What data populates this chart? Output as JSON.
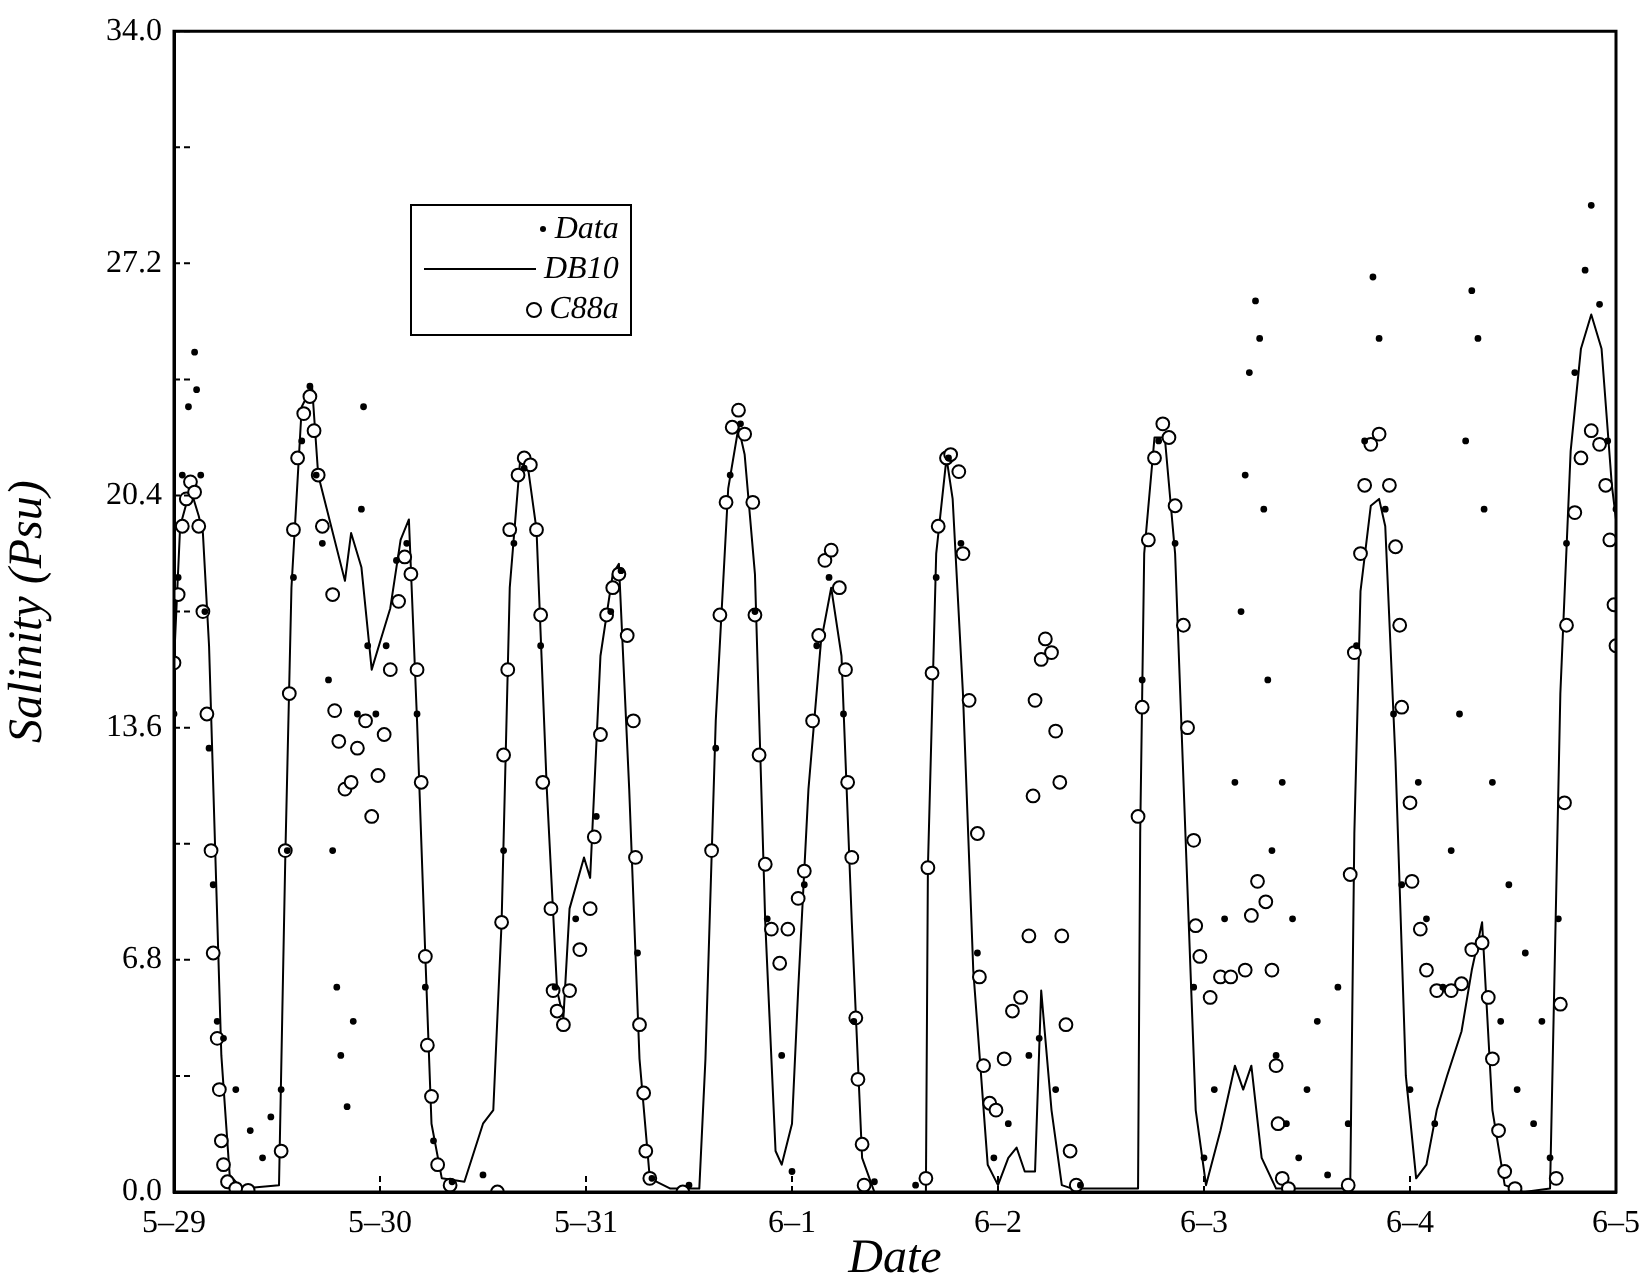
{
  "chart_data": {
    "type": "scatter",
    "xlabel": "Date",
    "ylabel": "Salinity (Psu)",
    "xlim": [
      "--05-29",
      "--06-05"
    ],
    "xticks": [
      {
        "value": "--05-29",
        "label": "5–29"
      },
      {
        "value": "--05-30",
        "label": "5–30"
      },
      {
        "value": "--05-31",
        "label": "5–31"
      },
      {
        "value": "--06-01",
        "label": "6–1"
      },
      {
        "value": "--06-02",
        "label": "6–2"
      },
      {
        "value": "--06-03",
        "label": "6–3"
      },
      {
        "value": "--06-04",
        "label": "6–4"
      },
      {
        "value": "--06-05",
        "label": "6–5"
      }
    ],
    "ylim": [
      0,
      34
    ],
    "yticks": [
      {
        "value": 0,
        "label": "0.0"
      },
      {
        "value": 3.4,
        "label": null
      },
      6.8,
      {
        "value": 10.2,
        "label": null
      },
      13.6,
      {
        "value": 17,
        "label": null
      },
      20.4,
      {
        "value": 23.8,
        "label": null
      },
      27.2,
      {
        "value": 30.6,
        "label": null
      },
      {
        "value": 34,
        "label": "34.0"
      }
    ],
    "grid": false,
    "legend": "top left",
    "series": [
      {
        "name": "Data",
        "type": "scatter",
        "marker": "circle",
        "color": "#000000",
        "x": [
          "--05-29T00:00",
          "--05-29T00:29",
          "--05-29T00:58",
          "--05-29T01:41",
          "--05-29T02:24",
          "--05-29T02:38",
          "--05-29T03:07",
          "--05-29T03:36",
          "--05-29T04:05",
          "--05-29T04:34",
          "--05-29T05:02",
          "--05-29T05:46",
          "--05-29T07:12",
          "--05-29T08:53",
          "--05-29T10:19",
          "--05-29T11:17",
          "--05-29T12:29",
          "--05-29T13:12",
          "--05-29T13:55",
          "--05-29T14:53",
          "--05-29T15:50",
          "--05-29T16:34",
          "--05-29T17:17",
          "--05-29T18:00",
          "--05-29T18:29",
          "--05-29T18:58",
          "--05-29T19:26",
          "--05-29T20:10",
          "--05-29T20:53",
          "--05-29T21:22",
          "--05-29T21:50",
          "--05-29T22:05",
          "--05-29T22:34",
          "--05-29T23:31",
          "--05-30T00:43",
          "--05-30T01:55",
          "--05-30T03:07",
          "--05-30T04:19",
          "--05-30T05:17",
          "--05-30T06:14",
          "--05-30T08:24",
          "--05-30T12:00",
          "--05-30T14:24",
          "--05-30T15:36",
          "--05-30T16:48",
          "--05-30T18:43",
          "--05-30T20:24",
          "--05-30T22:48",
          "--05-31T01:12",
          "--05-31T02:53",
          "--05-31T04:05",
          "--05-31T06:00",
          "--05-31T07:41",
          "--05-31T12:00",
          "--05-31T15:07",
          "--05-31T16:48",
          "--05-31T18:00",
          "--05-31T19:41",
          "--05-31T21:07",
          "--05-31T22:48",
          "--06-01T00:00",
          "--06-01T01:26",
          "--06-01T02:53",
          "--06-01T04:19",
          "--06-01T06:00",
          "--06-01T07:12",
          "--06-01T09:36",
          "--06-01T14:24",
          "--06-01T16:48",
          "--06-01T18:14",
          "--06-01T19:41",
          "--06-01T21:36",
          "--06-01T23:31",
          "--06-02T01:12",
          "--06-02T03:36",
          "--06-02T04:48",
          "--06-02T06:43",
          "--06-02T09:36",
          "--06-02T16:48",
          "--06-02T18:43",
          "--06-02T20:38",
          "--06-02T22:48",
          "--06-03T00:00",
          "--06-03T01:12",
          "--06-03T02:24",
          "--06-03T03:36",
          "--06-03T04:19",
          "--06-03T04:48",
          "--06-03T05:17",
          "--06-03T06:00",
          "--06-03T06:29",
          "--06-03T06:58",
          "--06-03T07:26",
          "--06-03T07:55",
          "--06-03T08:24",
          "--06-03T09:07",
          "--06-03T09:36",
          "--06-03T10:19",
          "--06-03T11:02",
          "--06-03T12:00",
          "--06-03T13:12",
          "--06-03T14:24",
          "--06-03T15:36",
          "--06-03T16:48",
          "--06-03T17:46",
          "--06-03T18:43",
          "--06-03T19:41",
          "--06-03T20:24",
          "--06-03T21:07",
          "--06-03T22:05",
          "--06-03T23:02",
          "--06-04T00:00",
          "--06-04T00:58",
          "--06-04T01:55",
          "--06-04T02:53",
          "--06-04T03:50",
          "--06-04T04:48",
          "--06-04T05:46",
          "--06-04T06:29",
          "--06-04T07:12",
          "--06-04T07:55",
          "--06-04T08:38",
          "--06-04T09:36",
          "--06-04T10:34",
          "--06-04T11:31",
          "--06-04T12:29",
          "--06-04T13:26",
          "--06-04T14:24",
          "--06-04T15:22",
          "--06-04T16:19",
          "--06-04T17:17",
          "--06-04T18:14",
          "--06-04T19:12",
          "--06-04T20:24",
          "--06-04T21:07",
          "--06-04T22:05",
          "--06-04T23:02",
          "--06-05T00:00"
        ],
        "values": [
          14,
          18,
          21,
          23,
          24.6,
          23.5,
          21,
          17,
          13,
          9,
          5,
          4.5,
          3,
          1.8,
          1,
          2.2,
          3,
          10,
          18,
          22,
          23.6,
          21,
          19,
          15,
          10,
          6,
          4,
          2.5,
          5,
          14,
          20,
          23,
          16,
          14,
          16,
          18.5,
          19,
          14,
          6,
          1.5,
          0.3,
          0.5,
          10,
          19,
          21.2,
          16,
          6,
          8,
          11,
          17,
          18.2,
          7,
          0.4,
          0.2,
          13,
          21,
          22.5,
          17,
          8,
          4,
          0.6,
          9,
          16,
          18,
          14,
          5,
          0.3,
          0.2,
          18,
          21.5,
          19,
          7,
          1,
          2,
          4,
          4.5,
          3,
          0.2,
          15,
          22,
          19,
          6,
          1,
          3,
          8,
          12,
          17,
          21,
          24,
          26.1,
          25,
          20,
          15,
          10,
          4,
          12,
          2,
          8,
          1,
          3,
          5,
          0.5,
          6,
          2,
          16,
          22,
          26.8,
          25,
          20,
          14,
          9,
          3,
          12,
          8,
          2,
          6,
          10,
          14,
          22,
          26.4,
          25,
          20,
          12,
          5,
          9,
          3,
          7,
          2,
          5,
          1,
          8,
          19,
          24,
          27,
          28.9,
          26,
          22,
          20
        ]
      },
      {
        "name": "DB10",
        "type": "line",
        "marker": "none",
        "line_style": "solid",
        "color": "#000000",
        "x": [
          "--05-29T00:00",
          "--05-29T00:43",
          "--05-29T01:55",
          "--05-29T02:53",
          "--05-29T03:22",
          "--05-29T04:05",
          "--05-29T04:48",
          "--05-29T05:31",
          "--05-29T06:29",
          "--05-29T07:55",
          "--05-29T12:14",
          "--05-29T12:58",
          "--05-29T13:41",
          "--05-29T14:53",
          "--05-29T16:05",
          "--05-29T16:48",
          "--05-29T19:55",
          "--05-29T20:38",
          "--05-29T21:50",
          "--05-29T23:02",
          "--05-30T00:14",
          "--05-30T01:12",
          "--05-30T02:24",
          "--05-30T03:22",
          "--05-30T04:19",
          "--05-30T05:17",
          "--05-30T06:00",
          "--05-30T07:12",
          "--05-30T09:50",
          "--05-30T12:00",
          "--05-30T13:12",
          "--05-30T14:10",
          "--05-30T15:07",
          "--05-30T16:19",
          "--05-30T17:02",
          "--05-30T18:14",
          "--05-30T19:26",
          "--05-30T20:38",
          "--05-30T21:22",
          "--05-30T22:05",
          "--05-30T23:46",
          "--05-31T00:29",
          "--05-31T01:41",
          "--05-31T03:07",
          "--05-31T03:50",
          "--05-31T05:02",
          "--05-31T06:14",
          "--05-31T07:26",
          "--05-31T09:50",
          "--05-31T13:12",
          "--05-31T13:55",
          "--05-31T15:07",
          "--05-31T16:34",
          "--05-31T17:46",
          "--05-31T18:29",
          "--05-31T19:41",
          "--05-31T20:53",
          "--05-31T22:05",
          "--05-31T22:48",
          "--06-01T00:00",
          "--06-01T00:43",
          "--06-01T01:55",
          "--06-01T03:22",
          "--06-01T04:34",
          "--06-01T05:46",
          "--06-01T06:58",
          "--06-01T08:10",
          "--06-01T09:36",
          "--06-01T15:36",
          "--06-01T15:50",
          "--06-01T16:48",
          "--06-01T18:00",
          "--06-01T18:43",
          "--06-01T19:55",
          "--06-01T21:07",
          "--06-01T22:48",
          "--06-02T00:00",
          "--06-02T01:12",
          "--06-02T02:10",
          "--06-02T03:07",
          "--06-02T04:19",
          "--06-02T05:02",
          "--06-02T06:14",
          "--06-02T07:26",
          "--06-02T08:38",
          "--06-02T16:19",
          "--06-02T16:34",
          "--06-02T17:02",
          "--06-02T18:14",
          "--06-02T19:26",
          "--06-02T20:38",
          "--06-02T21:50",
          "--06-02T23:02",
          "--06-03T00:14",
          "--06-03T01:55",
          "--06-03T03:36",
          "--06-03T04:34",
          "--06-03T05:31",
          "--06-03T06:43",
          "--06-03T08:24",
          "--06-03T17:02",
          "--06-03T17:31",
          "--06-03T18:14",
          "--06-03T19:26",
          "--06-03T20:24",
          "--06-03T21:07",
          "--06-03T22:19",
          "--06-03T23:31",
          "--06-04T00:43",
          "--06-04T01:55",
          "--06-04T03:07",
          "--06-04T04:19",
          "--06-04T06:00",
          "--06-04T07:12",
          "--06-04T08:24",
          "--06-04T09:36",
          "--06-04T11:02",
          "--06-04T13:12",
          "--06-04T16:19",
          "--06-04T17:31",
          "--06-04T18:43",
          "--06-04T19:55",
          "--06-04T21:07",
          "--06-04T22:19",
          "--06-04T23:31",
          "--06-05T00:00"
        ],
        "values": [
          15.5,
          19.5,
          20.6,
          19.8,
          19.3,
          16,
          10,
          4,
          0.5,
          0.1,
          0.2,
          9.8,
          17.7,
          23,
          23.6,
          21,
          17.9,
          19.3,
          18.3,
          15.3,
          16.3,
          17.1,
          19.1,
          19.7,
          13.8,
          6.9,
          2,
          0.4,
          0.3,
          2,
          2.4,
          7.9,
          17.7,
          21.4,
          21.6,
          19.4,
          11.8,
          5.9,
          5.1,
          8.3,
          9.8,
          9.2,
          15.7,
          18.1,
          18.4,
          11.8,
          3.9,
          0.4,
          0.1,
          0.1,
          3.9,
          13.8,
          20.6,
          22.4,
          21.6,
          18.1,
          7.9,
          1.2,
          0.8,
          2,
          5.9,
          11.8,
          16.1,
          17.7,
          15.7,
          7.9,
          1,
          0,
          0,
          9.5,
          18.7,
          21.5,
          20.3,
          14.6,
          6.5,
          0.8,
          0.2,
          1,
          1.3,
          0.6,
          0.6,
          5.9,
          2.4,
          0.2,
          0.1,
          0.1,
          10.5,
          18.7,
          22.1,
          22.1,
          18.7,
          10.5,
          2.4,
          0.2,
          1.8,
          3.7,
          3,
          3.7,
          1,
          0.1,
          0.1,
          10.5,
          17.6,
          20.1,
          20.3,
          19.5,
          12.6,
          3.4,
          0.4,
          0.8,
          2.4,
          3.4,
          4.7,
          6.5,
          7.9,
          2.4,
          0.2,
          0,
          0.1,
          14.6,
          21.7,
          24.7,
          25.7,
          24.7,
          20.7,
          19.7
        ]
      },
      {
        "name": "C88a",
        "type": "scatter",
        "marker": "circle",
        "color": "#000000",
        "x": [
          "--05-29T00:00",
          "--05-29T00:29",
          "--05-29T00:58",
          "--05-29T01:26",
          "--05-29T01:55",
          "--05-29T02:24",
          "--05-29T02:53",
          "--05-29T03:22",
          "--05-29T03:50",
          "--05-29T04:19",
          "--05-29T04:34",
          "--05-29T05:02",
          "--05-29T05:17",
          "--05-29T05:31",
          "--05-29T05:46",
          "--05-29T06:14",
          "--05-29T07:12",
          "--05-29T08:38",
          "--05-29T12:29",
          "--05-29T12:58",
          "--05-29T13:26",
          "--05-29T13:55",
          "--05-29T14:24",
          "--05-29T15:07",
          "--05-29T15:50",
          "--05-29T16:19",
          "--05-29T16:48",
          "--05-29T17:17",
          "--05-29T18:29",
          "--05-29T18:43",
          "--05-29T19:12",
          "--05-29T19:55",
          "--05-29T20:38",
          "--05-29T21:22",
          "--05-29T22:19",
          "--05-29T23:02",
          "--05-29T23:46",
          "--05-30T00:29",
          "--05-30T01:12",
          "--05-30T02:10",
          "--05-30T02:53",
          "--05-30T03:36",
          "--05-30T04:19",
          "--05-30T04:48",
          "--05-30T05:17",
          "--05-30T05:31",
          "--05-30T06:00",
          "--05-30T06:43",
          "--05-30T08:10",
          "--05-30T13:41",
          "--05-30T14:10",
          "--05-30T14:24",
          "--05-30T14:53",
          "--05-30T15:07",
          "--05-30T16:05",
          "--05-30T16:48",
          "--05-30T17:31",
          "--05-30T18:14",
          "--05-30T18:43",
          "--05-30T18:58",
          "--05-30T19:55",
          "--05-30T20:10",
          "--05-30T20:38",
          "--05-30T21:22",
          "--05-30T22:05",
          "--05-30T23:17",
          "--05-31T00:29",
          "--05-31T00:58",
          "--05-31T01:41",
          "--05-31T02:24",
          "--05-31T03:07",
          "--05-31T03:50",
          "--05-31T04:48",
          "--05-31T05:31",
          "--05-31T05:46",
          "--05-31T06:14",
          "--05-31T06:43",
          "--05-31T06:58",
          "--05-31T07:26",
          "--05-31T11:17",
          "--05-31T14:38",
          "--05-31T15:36",
          "--05-31T16:19",
          "--05-31T17:02",
          "--05-31T17:46",
          "--05-31T18:29",
          "--05-31T19:26",
          "--05-31T19:41",
          "--05-31T20:10",
          "--05-31T20:53",
          "--05-31T21:36",
          "--05-31T22:34",
          "--05-31T23:31",
          "--06-01T00:43",
          "--06-01T01:26",
          "--06-01T02:24",
          "--06-01T03:07",
          "--06-01T03:50",
          "--06-01T04:34",
          "--06-01T05:31",
          "--06-01T06:14",
          "--06-01T06:29",
          "--06-01T06:58",
          "--06-01T07:26",
          "--06-01T07:41",
          "--06-01T08:10",
          "--06-01T08:24",
          "--06-01T15:36",
          "--06-01T15:50",
          "--06-01T16:19",
          "--06-01T17:02",
          "--06-01T18:00",
          "--06-01T18:29",
          "--06-01T19:26",
          "--06-01T19:55",
          "--06-01T20:38",
          "--06-01T21:36",
          "--06-01T21:50",
          "--06-01T22:19",
          "--06-01T23:02",
          "--06-01T23:46",
          "--06-02T00:43",
          "--06-02T01:41",
          "--06-02T02:38",
          "--06-02T03:36",
          "--06-02T04:05",
          "--06-02T04:19",
          "--06-02T05:02",
          "--06-02T05:31",
          "--06-02T06:14",
          "--06-02T06:43",
          "--06-02T07:12",
          "--06-02T07:26",
          "--06-02T07:55",
          "--06-02T08:24",
          "--06-02T09:07",
          "--06-02T16:19",
          "--06-02T16:48",
          "--06-02T17:31",
          "--06-02T18:14",
          "--06-02T19:12",
          "--06-02T19:55",
          "--06-02T20:38",
          "--06-02T21:36",
          "--06-02T22:05",
          "--06-02T22:48",
          "--06-02T23:02",
          "--06-02T23:31",
          "--06-03T00:43",
          "--06-03T01:55",
          "--06-03T03:07",
          "--06-03T04:48",
          "--06-03T05:31",
          "--06-03T06:14",
          "--06-03T07:12",
          "--06-03T07:55",
          "--06-03T08:24",
          "--06-03T08:38",
          "--06-03T09:07",
          "--06-03T09:50",
          "--06-03T16:48",
          "--06-03T17:02",
          "--06-03T17:31",
          "--06-03T18:14",
          "--06-03T18:43",
          "--06-03T19:26",
          "--06-03T20:24",
          "--06-03T21:36",
          "--06-03T22:19",
          "--06-03T22:48",
          "--06-03T23:02",
          "--06-04T00:00",
          "--06-04T00:14",
          "--06-04T01:12",
          "--06-04T01:55",
          "--06-04T03:07",
          "--06-04T04:48",
          "--06-04T06:00",
          "--06-04T07:12",
          "--06-04T08:24",
          "--06-04T09:07",
          "--06-04T09:36",
          "--06-04T10:19",
          "--06-04T11:02",
          "--06-04T12:14",
          "--06-04T17:02",
          "--06-04T17:31",
          "--06-04T18:00",
          "--06-04T18:14",
          "--06-04T19:12",
          "--06-04T19:55",
          "--06-04T21:07",
          "--06-04T22:05",
          "--06-04T22:48",
          "--06-04T23:17",
          "--06-04T23:46",
          "--06-05T00:00"
        ],
        "values": [
          15.5,
          17.5,
          19.5,
          20.3,
          20.8,
          20.5,
          19.5,
          17,
          14,
          10,
          7,
          4.5,
          3,
          1.5,
          0.8,
          0.3,
          0.1,
          0.05,
          1.2,
          10,
          14.6,
          19.4,
          21.5,
          22.8,
          23.3,
          22.3,
          21,
          19.5,
          17.5,
          14.1,
          13.2,
          11.8,
          12,
          13,
          13.8,
          11,
          12.2,
          13.4,
          15.3,
          17.3,
          18.6,
          18.1,
          15.3,
          12,
          6.9,
          4.3,
          2.8,
          0.8,
          0.2,
          0,
          7.9,
          12.8,
          15.3,
          19.4,
          21,
          21.5,
          21.3,
          19.4,
          16.9,
          12,
          8.3,
          5.9,
          5.3,
          4.9,
          5.9,
          7.1,
          8.3,
          10.4,
          13.4,
          16.9,
          17.7,
          18.1,
          16.3,
          13.8,
          9.8,
          4.9,
          2.9,
          1.2,
          0.4,
          0,
          10,
          16.9,
          20.2,
          22.4,
          22.9,
          22.2,
          20.2,
          16.9,
          12.8,
          9.6,
          7.7,
          6.7,
          7.7,
          8.6,
          9.4,
          13.8,
          16.3,
          18.5,
          18.8,
          17.7,
          15.3,
          12,
          9.8,
          5.1,
          3.3,
          1.4,
          0.2,
          0.4,
          9.5,
          15.2,
          19.5,
          21.5,
          21.6,
          21.1,
          18.7,
          14.4,
          10.5,
          6.3,
          3.7,
          2.6,
          2.4,
          3.9,
          5.3,
          5.7,
          7.5,
          11.6,
          14.4,
          15.6,
          16.2,
          15.8,
          13.5,
          12,
          7.5,
          4.9,
          1.2,
          0.2,
          11,
          14.2,
          19.1,
          21.5,
          22.5,
          22.1,
          20.1,
          16.6,
          13.6,
          10.3,
          7.8,
          6.9,
          5.7,
          6.3,
          6.3,
          6.5,
          8.1,
          9.1,
          8.5,
          6.5,
          3.7,
          2,
          0.4,
          0.1,
          0.2,
          9.3,
          15.8,
          18.7,
          20.7,
          21.9,
          22.2,
          20.7,
          18.9,
          16.6,
          14.2,
          11.4,
          9.1,
          7.7,
          6.5,
          5.9,
          5.9,
          6.1,
          7.1,
          7.3,
          5.7,
          3.9,
          1.8,
          0.6,
          0.1,
          0.4,
          5.5,
          11.4,
          16.6,
          19.9,
          21.5,
          22.3,
          21.9,
          20.7,
          19.1,
          17.2,
          16
        ]
      }
    ]
  }
}
